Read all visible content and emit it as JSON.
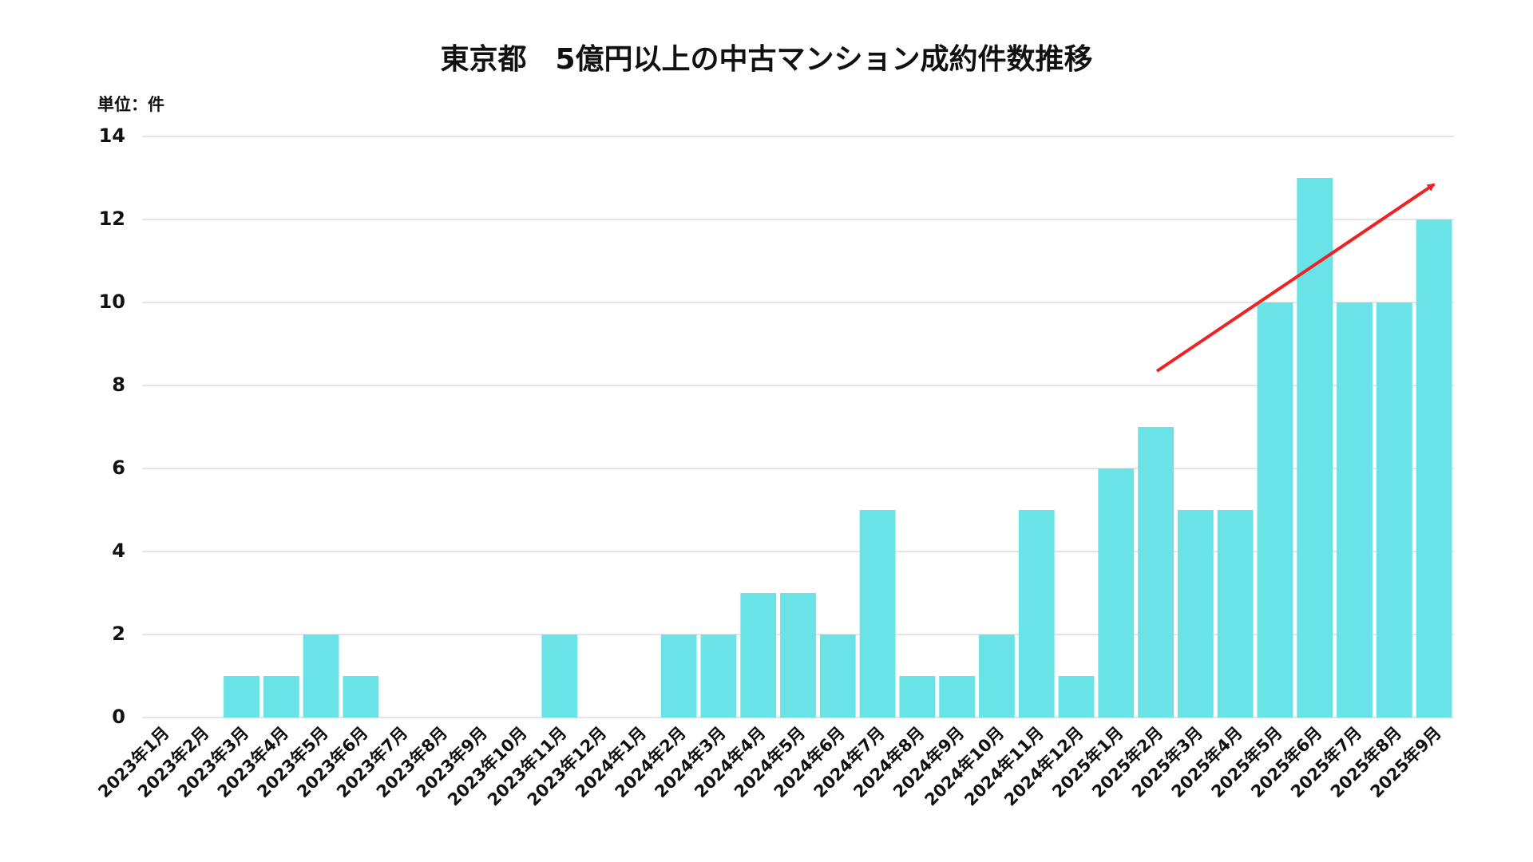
{
  "chart_data": {
    "type": "bar",
    "title": "東京都　5億円以上の中古マンション成約件数推移",
    "unit_label": "単位：件",
    "categories": [
      "2023年1月",
      "2023年2月",
      "2023年3月",
      "2023年4月",
      "2023年5月",
      "2023年6月",
      "2023年7月",
      "2023年8月",
      "2023年9月",
      "2023年10月",
      "2023年11月",
      "2023年12月",
      "2024年1月",
      "2024年2月",
      "2024年3月",
      "2024年4月",
      "2024年5月",
      "2024年6月",
      "2024年7月",
      "2024年8月",
      "2024年9月",
      "2024年10月",
      "2024年11月",
      "2024年12月",
      "2025年1月",
      "2025年2月",
      "2025年3月",
      "2025年4月",
      "2025年5月",
      "2025年6月",
      "2025年7月",
      "2025年8月",
      "2025年9月"
    ],
    "values": [
      0,
      0,
      1,
      1,
      2,
      1,
      0,
      0,
      0,
      0,
      2,
      0,
      0,
      2,
      2,
      3,
      3,
      2,
      5,
      1,
      1,
      2,
      5,
      1,
      6,
      7,
      5,
      5,
      10,
      13,
      10,
      10,
      12
    ],
    "color": "#6ae3e6",
    "ylim": [
      0,
      14
    ],
    "yticks": [
      0,
      2,
      4,
      6,
      8,
      10,
      12,
      14
    ],
    "grid": true
  }
}
